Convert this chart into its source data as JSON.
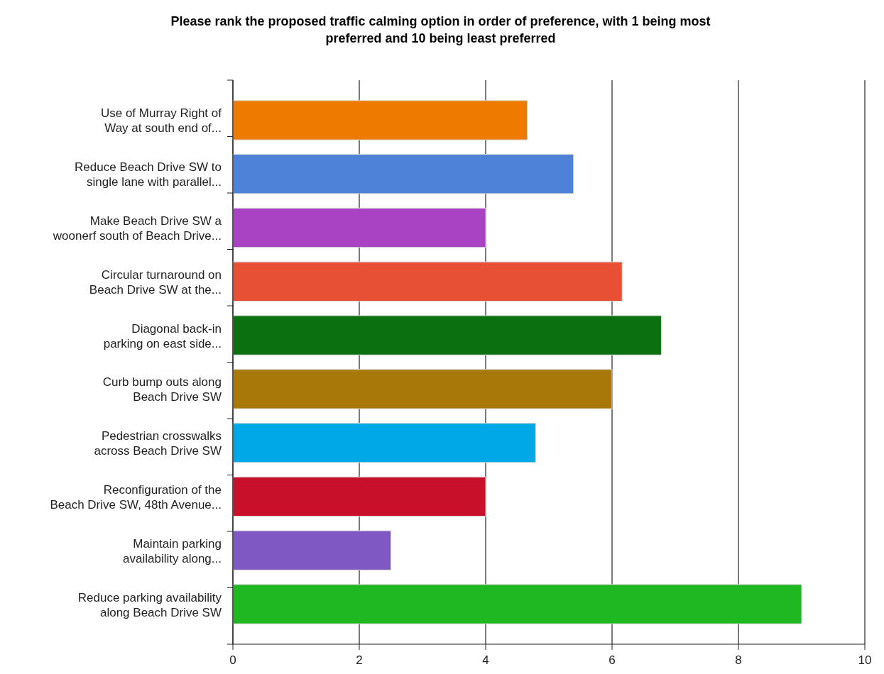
{
  "chart_data": {
    "type": "bar",
    "orientation": "horizontal",
    "title": "Please rank the proposed traffic calming option in order of preference, with 1 being most preferred and 10 being least preferred",
    "categories": [
      "Use of Murray Right of\nWay at south end of...",
      "Reduce Beach Drive SW to\nsingle lane with parallel...",
      "Make Beach Drive SW a\nwoonerf south of Beach Drive...",
      "Circular turnaround on\nBeach Drive SW at the...",
      "Diagonal back-in\nparking on east side...",
      "Curb bump outs along\nBeach Drive SW",
      "Pedestrian crosswalks\nacross Beach Drive SW",
      "Reconfiguration of the\nBeach Drive SW, 48th Avenue...",
      "Maintain parking\navailability along...",
      "Reduce parking availability\nalong Beach Drive SW"
    ],
    "values": [
      4.66,
      5.39,
      4.0,
      6.16,
      6.78,
      6.0,
      4.79,
      4.0,
      2.5,
      9.0
    ],
    "colors": [
      "#ee7a00",
      "#4e82d8",
      "#a844c4",
      "#e85035",
      "#0a7010",
      "#a87808",
      "#00a8e8",
      "#c8102a",
      "#8058c4",
      "#20b820"
    ],
    "xlim": [
      0,
      10
    ],
    "xticks": [
      0,
      2,
      4,
      6,
      8,
      10
    ],
    "grid": "x"
  }
}
